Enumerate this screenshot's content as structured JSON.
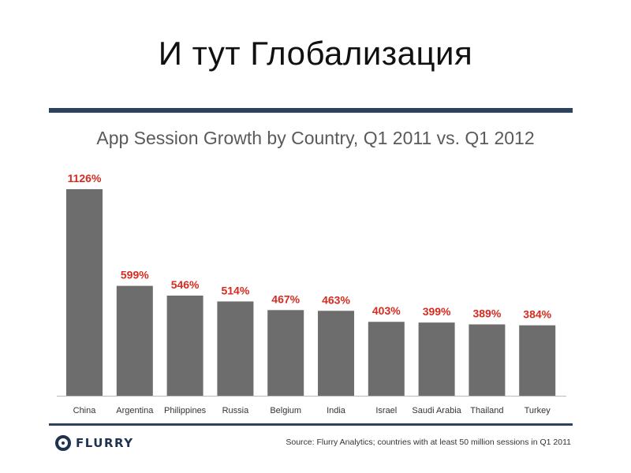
{
  "slide": {
    "title": "И тут Глобализация"
  },
  "brand": {
    "logo_text": "FLURRY",
    "logo_icon": "flurry-logo-icon",
    "frame_color": "#2b4260"
  },
  "footer": {
    "source": "Source: Flurry Analytics; countries with at least 50 million sessions in Q1 2011"
  },
  "chart_data": {
    "type": "bar",
    "title": "App Session Growth by Country, Q1 2011 vs. Q1 2012",
    "categories": [
      "China",
      "Argentina",
      "Philippines",
      "Russia",
      "Belgium",
      "India",
      "Israel",
      "Saudi Arabia",
      "Thailand",
      "Turkey"
    ],
    "values": [
      1126,
      599,
      546,
      514,
      467,
      463,
      403,
      399,
      389,
      384
    ],
    "value_labels": [
      "1126%",
      "599%",
      "546%",
      "514%",
      "467%",
      "463%",
      "403%",
      "399%",
      "389%",
      "384%"
    ],
    "ylim": [
      0,
      1126
    ],
    "grid": false,
    "legend": "none",
    "bar_color": "#6d6d6d",
    "label_color": "#d62b1f"
  }
}
